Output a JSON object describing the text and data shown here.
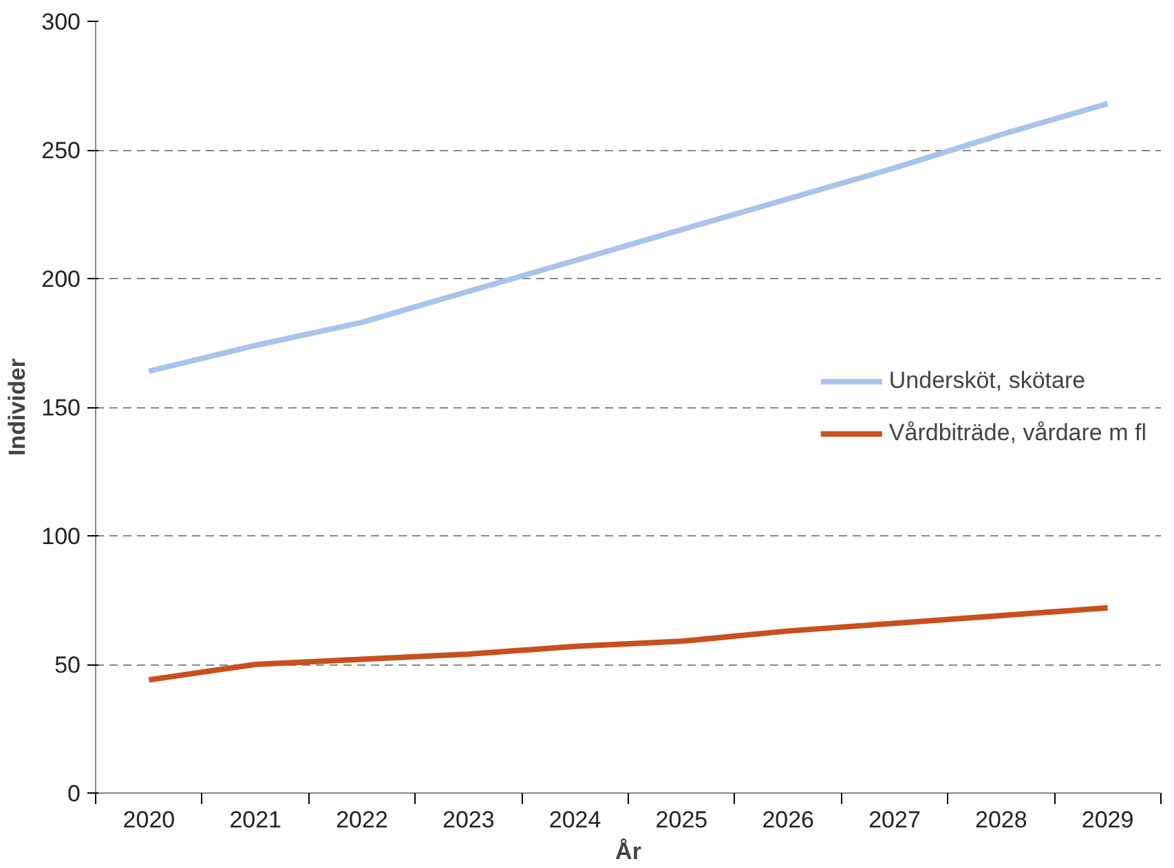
{
  "chart_data": {
    "type": "line",
    "xlabel": "År",
    "ylabel": "Individer",
    "categories": [
      "2020",
      "2021",
      "2022",
      "2023",
      "2024",
      "2025",
      "2026",
      "2027",
      "2028",
      "2029"
    ],
    "series": [
      {
        "name": "Undersköt, skötare",
        "color": "#a9c4eb",
        "values": [
          164,
          174,
          183,
          195,
          207,
          219,
          231,
          243,
          256,
          268
        ]
      },
      {
        "name": "Vårdbiträde, vårdare m fl",
        "color": "#c8501e",
        "values": [
          44,
          50,
          52,
          54,
          57,
          59,
          63,
          66,
          69,
          72
        ]
      }
    ],
    "ylim": [
      0,
      300
    ],
    "yticks": [
      0,
      50,
      100,
      150,
      200,
      250,
      300
    ],
    "grid": "y",
    "legend": "right",
    "marker": "none",
    "line_style": "solid"
  }
}
